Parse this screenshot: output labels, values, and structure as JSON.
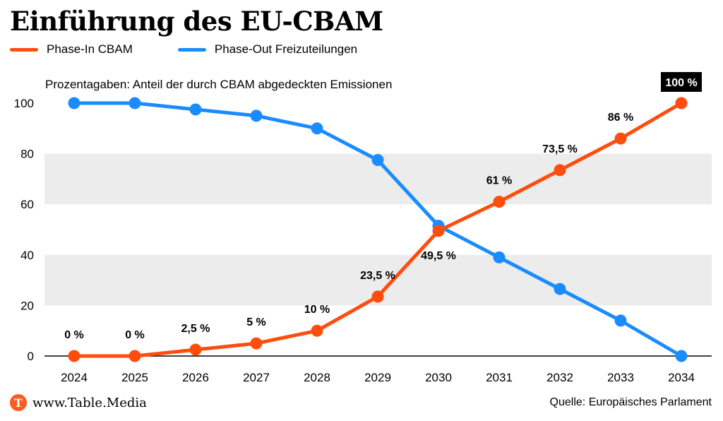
{
  "title": "Einführung des EU-CBAM",
  "subtitle": "Prozentagaben: Anteil der durch CBAM abgedeckten Emissionen",
  "legend": [
    {
      "label": "Phase-In CBAM",
      "color": "#ff4d0d"
    },
    {
      "label": "Phase-Out Freizuteilungen",
      "color": "#1a8cff"
    }
  ],
  "footer": {
    "logo_letter": "T",
    "site": "www.Table.Media",
    "source": "Quelle: Europäisches Parlament"
  },
  "chart_data": {
    "type": "line",
    "x": [
      "2024",
      "2025",
      "2026",
      "2027",
      "2028",
      "2029",
      "2030",
      "2031",
      "2032",
      "2033",
      "2034"
    ],
    "series": [
      {
        "name": "Phase-In CBAM",
        "color": "#ff4d0d",
        "values": [
          0,
          0,
          2.5,
          5,
          10,
          23.5,
          49.5,
          61,
          73.5,
          86,
          100
        ],
        "labels": [
          "0 %",
          "0 %",
          "2,5 %",
          "5 %",
          "10 %",
          "23,5 %",
          "49,5 %",
          "61 %",
          "73,5 %",
          "86 %",
          "100 %"
        ]
      },
      {
        "name": "Phase-Out Freizuteilungen",
        "color": "#1a8cff",
        "values": [
          100,
          100,
          97.5,
          95,
          90,
          77.5,
          51.5,
          39,
          26.5,
          14,
          0
        ]
      }
    ],
    "yticks": [
      "0",
      "20",
      "40",
      "60",
      "80",
      "100"
    ],
    "ylim": [
      0,
      100
    ],
    "grid": "alternating horizontal bands",
    "highlight_label_color": "#000000"
  }
}
